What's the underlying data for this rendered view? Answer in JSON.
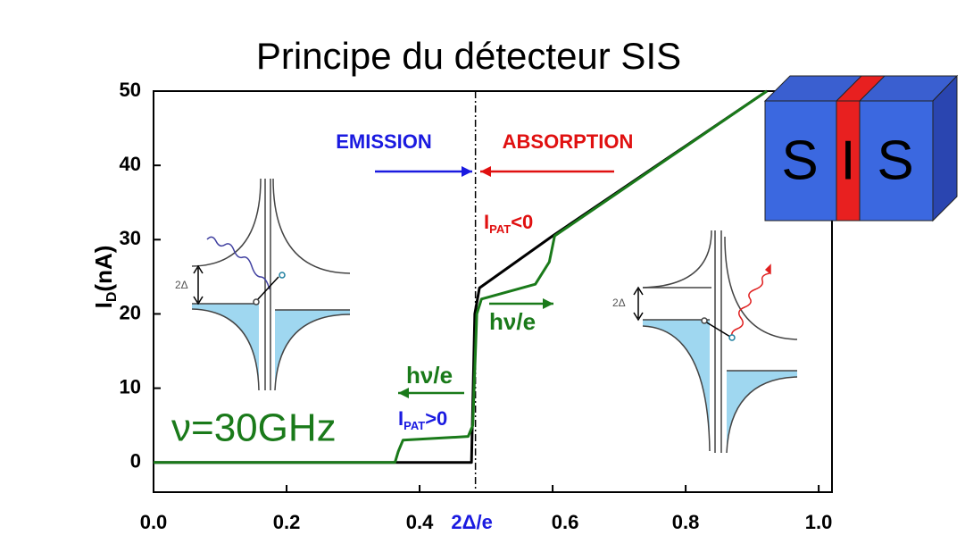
{
  "chart_data": {
    "type": "line",
    "title": "Principe du détecteur SIS",
    "y_label": {
      "main": "I",
      "sub": "D",
      "rest": "(nA)"
    },
    "xlim": [
      0,
      1.02
    ],
    "ylim": [
      -4,
      50
    ],
    "xticks": [
      {
        "value": 0,
        "label": "0.0"
      },
      0.2,
      0.4,
      0.6,
      0.8,
      {
        "value": 1,
        "label": "1.0"
      }
    ],
    "yticks": [
      0,
      10,
      20,
      30,
      40,
      50
    ],
    "threshold": {
      "x": 0.484,
      "label": "2Δ/e",
      "color": "#1a1ae0"
    },
    "series": [
      {
        "color": "#000000",
        "x": [
          0,
          0.478,
          0.483,
          0.49,
          0.6,
          0.922
        ],
        "values": [
          0,
          0,
          20,
          23.5,
          30.5,
          50
        ]
      },
      {
        "color": "#1a7a1a",
        "x": [
          0,
          0.363,
          0.368,
          0.375,
          0.473,
          0.48,
          0.486,
          0.493,
          0.574,
          0.595,
          0.603,
          0.922
        ],
        "values": [
          0,
          0,
          1.5,
          3,
          3.5,
          5,
          20,
          22,
          24,
          27,
          30.5,
          50
        ]
      }
    ],
    "annotations": [
      {
        "text": "EMISSION",
        "color": "#1a1ae0"
      },
      {
        "text": "ABSORPTION",
        "color": "#e01010"
      },
      {
        "main": "I",
        "sub": "PAT",
        "rest": "<0",
        "color": "#e01010"
      },
      {
        "text": "hν/e",
        "color": "#1a7a1a"
      },
      {
        "text": "hν/e",
        "color": "#1a7a1a"
      },
      {
        "main": "I",
        "sub": "PAT",
        "rest": ">0",
        "color": "#1a1ae0"
      },
      {
        "text": "ν=30GHz",
        "color": "#1a7a1a"
      }
    ],
    "junction": {
      "left": "S",
      "middle": "I",
      "right": "S"
    },
    "diagrams": {
      "left_gap": "2Δ",
      "right_gap": "2Δ"
    }
  }
}
